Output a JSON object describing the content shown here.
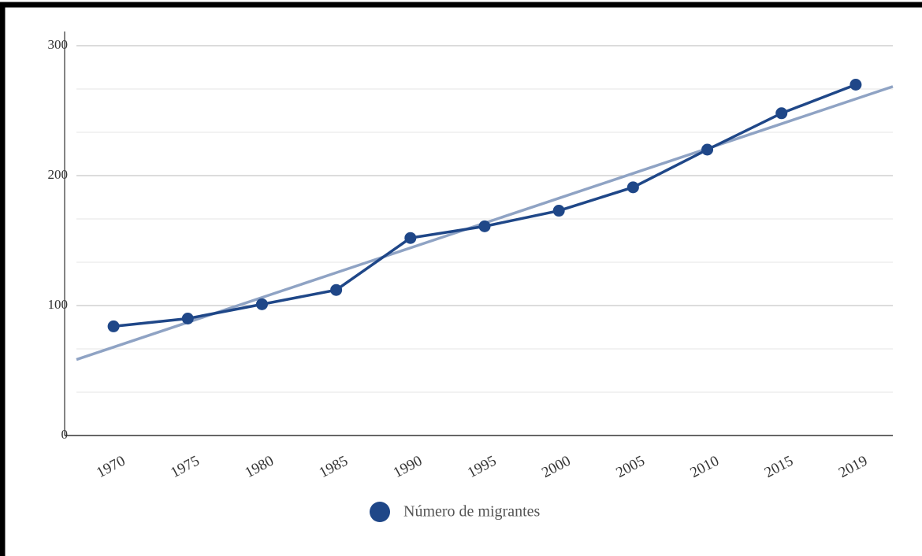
{
  "chart_data": {
    "type": "line",
    "categories": [
      "1970",
      "1975",
      "1980",
      "1985",
      "1990",
      "1995",
      "2000",
      "2005",
      "2010",
      "2015",
      "2019"
    ],
    "series": [
      {
        "name": "Número de migrantes",
        "color": "#1f4788",
        "values": [
          84,
          90,
          101,
          112,
          152,
          161,
          173,
          191,
          220,
          248,
          270
        ]
      }
    ],
    "trendline": {
      "color": "#8fa3c4",
      "values": [
        68,
        87.1,
        106.2,
        125.3,
        144.4,
        163.5,
        182.6,
        201.7,
        220.8,
        239.9,
        259
      ]
    },
    "ylim": [
      0,
      300
    ],
    "yticks": [
      0,
      100,
      200,
      300
    ],
    "grid": true,
    "legend": "bottom"
  }
}
